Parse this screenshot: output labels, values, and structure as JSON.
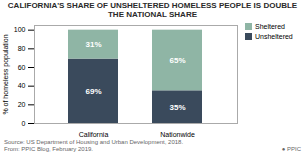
{
  "chart_data": {
    "type": "bar",
    "stacked": true,
    "title": "CALIFORNIA'S SHARE OF UNSHELTERED HOMELESS PEOPLE IS DOUBLE\nTHE NATIONAL SHARE",
    "categories": [
      "California",
      "Nationwide"
    ],
    "series": [
      {
        "name": "Unsheltered",
        "color": "#3a4a5c",
        "values": [
          69,
          35
        ],
        "value_labels": [
          "69%",
          "35%"
        ]
      },
      {
        "name": "Sheltered",
        "color": "#8fb5a5",
        "values": [
          31,
          65
        ],
        "value_labels": [
          "31%",
          "65%"
        ]
      }
    ],
    "ylabel": "% of homeless population",
    "ylim": [
      0,
      105
    ],
    "yticks": [
      0,
      20,
      40,
      60,
      80,
      100
    ],
    "data_labels": true,
    "legend": "upper right",
    "annotations": [
      "Source: US Department of Housing and Urban Development, 2018.\nFrom: PPIC Blog, February 2019.",
      "●  PPIC"
    ]
  }
}
